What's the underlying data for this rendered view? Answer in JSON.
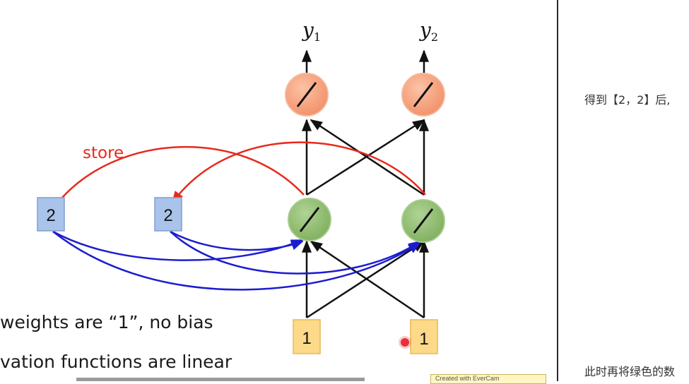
{
  "slide": {
    "outputs": [
      {
        "letter": "y",
        "sub": "1"
      },
      {
        "letter": "y",
        "sub": "2"
      }
    ],
    "store_label": "store",
    "memory_values": [
      "2",
      "2"
    ],
    "input_values": [
      "1",
      "1"
    ],
    "notes": [
      "weights are “1”, no bias",
      "vation functions are linear"
    ],
    "watermark": "Created with EverCam"
  },
  "side_panel": {
    "line1": "得到【2，2】后,",
    "line2": "此时再将绿色的数"
  },
  "colors": {
    "output_neuron": "#f4a07c",
    "hidden_neuron": "#8fbc6e",
    "memory_cell": "#a9c3ea",
    "input_cell": "#fdd98a",
    "store_arrow": "#e8291c",
    "recurrent_arrow": "#1c1ccf"
  }
}
